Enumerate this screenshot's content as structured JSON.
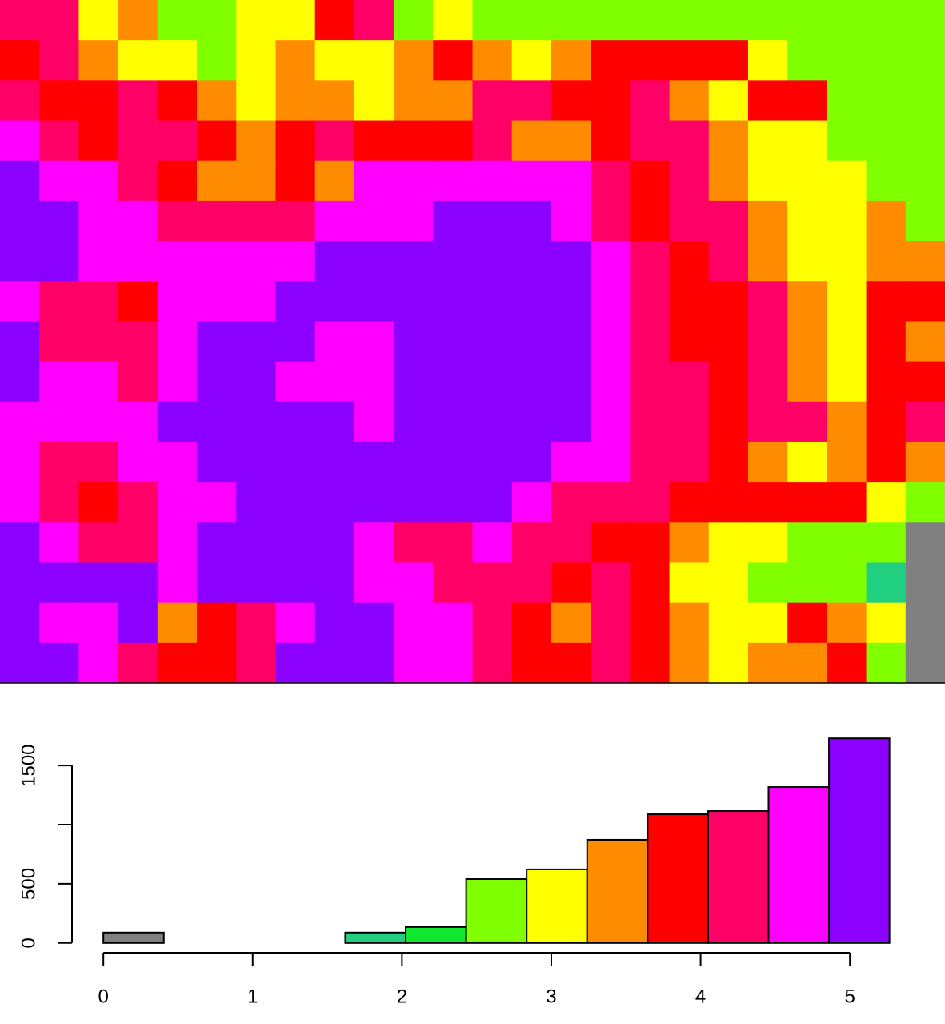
{
  "chart_data": [
    {
      "type": "histogram",
      "bins": [
        0,
        0.405,
        0.81,
        1.215,
        1.62,
        2.025,
        2.43,
        2.835,
        3.24,
        3.645,
        4.05,
        4.455,
        4.86,
        5.265
      ],
      "values": [
        88,
        0,
        0,
        0,
        88,
        135,
        540,
        622,
        872,
        1088,
        1115,
        1318,
        1730
      ],
      "colors": [
        "#808080",
        "#3050ff",
        "#20a0ff",
        "#20c8c0",
        "#20d080",
        "#10e830",
        "#80ff00",
        "#ffff00",
        "#ff8c00",
        "#ff0000",
        "#ff0066",
        "#ff00ff",
        "#8c00ff"
      ],
      "xlim": [
        -0.21,
        5.476
      ],
      "ylim": [
        -69,
        1799
      ],
      "xticks": [
        0,
        1,
        2,
        3,
        4,
        5
      ],
      "yticks": [
        0,
        500,
        {
          "value": 1000,
          "label": null
        },
        1500
      ]
    },
    {
      "type": "raster",
      "values": [
        [
          4.2,
          4.2,
          3,
          3.4,
          2.6,
          2.6,
          3,
          3,
          3.8,
          4.2,
          2.6,
          3,
          2.6,
          2.6,
          2.6,
          2.6,
          2.6,
          2.6,
          2.6,
          2.6,
          2.6,
          2.6,
          2.6,
          2.6
        ],
        [
          3.8,
          4.2,
          3.4,
          3,
          3,
          2.6,
          3,
          3.4,
          3,
          3,
          3.4,
          3.8,
          3.4,
          3,
          3.4,
          3.8,
          3.8,
          3.8,
          3.8,
          3,
          2.6,
          2.6,
          2.6,
          2.6
        ],
        [
          4.2,
          3.8,
          3.8,
          4.2,
          3.8,
          3.4,
          3,
          3.4,
          3.4,
          3,
          3.4,
          3.4,
          4.2,
          4.2,
          3.8,
          3.8,
          4.2,
          3.4,
          3,
          3.8,
          3.8,
          2.6,
          2.6,
          2.6
        ],
        [
          4.7,
          4.2,
          3.8,
          4.2,
          4.2,
          3.8,
          3.4,
          3.8,
          4.2,
          3.8,
          3.8,
          3.8,
          4.2,
          3.4,
          3.4,
          3.8,
          4.2,
          4.2,
          3.4,
          3,
          3,
          2.6,
          2.6,
          2.6
        ],
        [
          5,
          4.7,
          4.7,
          4.2,
          3.8,
          3.4,
          3.4,
          3.8,
          3.4,
          4.7,
          4.7,
          4.7,
          4.7,
          4.7,
          4.7,
          4.2,
          3.8,
          4.2,
          3.4,
          3,
          3,
          3,
          2.6,
          2.6
        ],
        [
          5,
          5,
          4.7,
          4.7,
          4.2,
          4.2,
          4.2,
          4.2,
          4.7,
          4.7,
          4.7,
          5,
          5,
          5,
          4.7,
          4.2,
          3.8,
          4.2,
          4.2,
          3.4,
          3,
          3,
          3.4,
          2.6
        ],
        [
          5,
          5,
          4.7,
          4.7,
          4.7,
          4.7,
          4.7,
          4.7,
          5,
          5,
          5,
          5,
          5,
          5,
          5,
          4.7,
          4.2,
          3.8,
          4.2,
          3.4,
          3,
          3,
          3.4,
          3.4
        ],
        [
          4.7,
          4.2,
          4.2,
          3.8,
          4.7,
          4.7,
          4.7,
          5,
          5,
          5,
          5,
          5,
          5,
          5,
          5,
          4.7,
          4.2,
          3.8,
          3.8,
          4.2,
          3.4,
          3,
          3.8,
          3.8
        ],
        [
          5,
          4.2,
          4.2,
          4.2,
          4.7,
          5,
          5,
          5,
          4.7,
          4.7,
          5,
          5,
          5,
          5,
          5,
          4.7,
          4.2,
          3.8,
          3.8,
          4.2,
          3.4,
          3,
          3.8,
          3.4
        ],
        [
          5,
          4.7,
          4.7,
          4.2,
          4.7,
          5,
          5,
          4.7,
          4.7,
          4.7,
          5,
          5,
          5,
          5,
          5,
          4.7,
          4.2,
          4.2,
          3.8,
          4.2,
          3.4,
          3,
          3.8,
          3.8
        ],
        [
          4.7,
          4.7,
          4.7,
          4.7,
          5,
          5,
          5,
          5,
          5,
          4.7,
          5,
          5,
          5,
          5,
          5,
          4.7,
          4.2,
          4.2,
          3.8,
          4.2,
          4.2,
          3.4,
          3.8,
          4.2
        ],
        [
          4.7,
          4.2,
          4.2,
          4.7,
          4.7,
          5,
          5,
          5,
          5,
          5,
          5,
          5,
          5,
          5,
          4.7,
          4.7,
          4.2,
          4.2,
          3.8,
          3.4,
          3,
          3.4,
          3.8,
          3.4
        ],
        [
          4.7,
          4.2,
          3.8,
          4.2,
          4.7,
          4.7,
          5,
          5,
          5,
          5,
          5,
          5,
          5,
          4.7,
          4.2,
          4.2,
          4.2,
          3.8,
          3.8,
          3.8,
          3.8,
          3.8,
          3,
          2.6
        ],
        [
          5,
          4.7,
          4.2,
          4.2,
          4.7,
          5,
          5,
          5,
          5,
          4.7,
          4.2,
          4.2,
          4.7,
          4.2,
          4.2,
          3.8,
          3.8,
          3.4,
          3,
          3,
          2.6,
          2.6,
          2.6,
          0.2
        ],
        [
          5,
          5,
          5,
          5,
          4.7,
          5,
          5,
          5,
          5,
          4.7,
          4.7,
          4.2,
          4.2,
          4.2,
          3.8,
          4.2,
          3.8,
          3,
          3,
          2.6,
          2.6,
          2.6,
          1.8,
          0.2
        ],
        [
          5,
          4.7,
          4.7,
          5,
          3.4,
          3.8,
          4.2,
          4.7,
          5,
          5,
          4.7,
          4.7,
          4.2,
          3.8,
          3.4,
          4.2,
          3.8,
          3.4,
          3,
          3,
          3.8,
          3.4,
          3,
          0.2
        ],
        [
          5,
          5,
          4.7,
          4.2,
          3.8,
          3.8,
          4.2,
          5,
          5,
          5,
          4.7,
          4.7,
          4.2,
          3.8,
          3.8,
          4.2,
          3.8,
          3.4,
          3,
          3.4,
          3.4,
          3.8,
          2.6,
          0.2
        ]
      ]
    }
  ]
}
